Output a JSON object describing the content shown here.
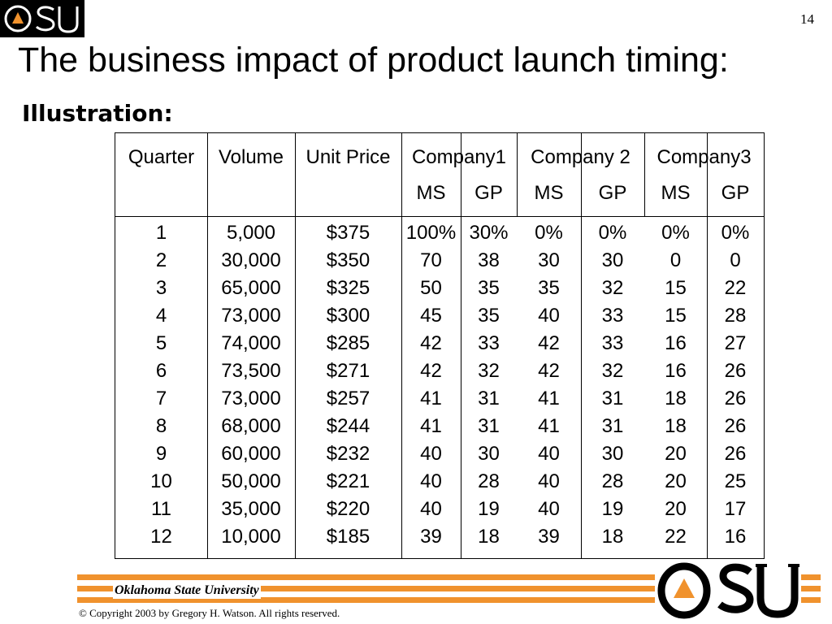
{
  "header": {
    "logo_text": "OSU",
    "page_number": "14"
  },
  "slide": {
    "title": "The business impact of product launch timing:",
    "subtitle": "Illustration:"
  },
  "table": {
    "header_row1": [
      "Quarter",
      "Volume",
      "Unit Price",
      "Company1",
      "Company 2",
      "Company3"
    ],
    "header_row2": [
      "",
      "",
      "",
      "MS",
      "GP",
      "MS",
      "GP",
      "MS",
      "GP"
    ],
    "rows": [
      [
        "1",
        "5,000",
        "$375",
        "100%",
        "30%",
        "0%",
        "0%",
        "0%",
        "0%"
      ],
      [
        "2",
        "30,000",
        "$350",
        "70",
        "38",
        "30",
        "30",
        "0",
        "0"
      ],
      [
        "3",
        "65,000",
        "$325",
        "50",
        "35",
        "35",
        "32",
        "15",
        "22"
      ],
      [
        "4",
        "73,000",
        "$300",
        "45",
        "35",
        "40",
        "33",
        "15",
        "28"
      ],
      [
        "5",
        "74,000",
        "$285",
        "42",
        "33",
        "42",
        "33",
        "16",
        "27"
      ],
      [
        "6",
        "73,500",
        "$271",
        "42",
        "32",
        "42",
        "32",
        "16",
        "26"
      ],
      [
        "7",
        "73,000",
        "$257",
        "41",
        "31",
        "41",
        "31",
        "18",
        "26"
      ],
      [
        "8",
        "68,000",
        "$244",
        "41",
        "31",
        "41",
        "31",
        "18",
        "26"
      ],
      [
        "9",
        "60,000",
        "$232",
        "40",
        "30",
        "40",
        "30",
        "20",
        "26"
      ],
      [
        "10",
        "50,000",
        "$221",
        "40",
        "28",
        "40",
        "28",
        "20",
        "25"
      ],
      [
        "11",
        "35,000",
        "$220",
        "40",
        "19",
        "40",
        "19",
        "20",
        "17"
      ],
      [
        "12",
        "10,000",
        "$185",
        "39",
        "18",
        "39",
        "18",
        "22",
        "16"
      ]
    ]
  },
  "footer": {
    "university": "Oklahoma State University",
    "copyright": "© Copyright 2003 by Gregory H. Watson. All rights reserved.",
    "logo_text": "OSU",
    "stripe_color": "#f0922d"
  }
}
